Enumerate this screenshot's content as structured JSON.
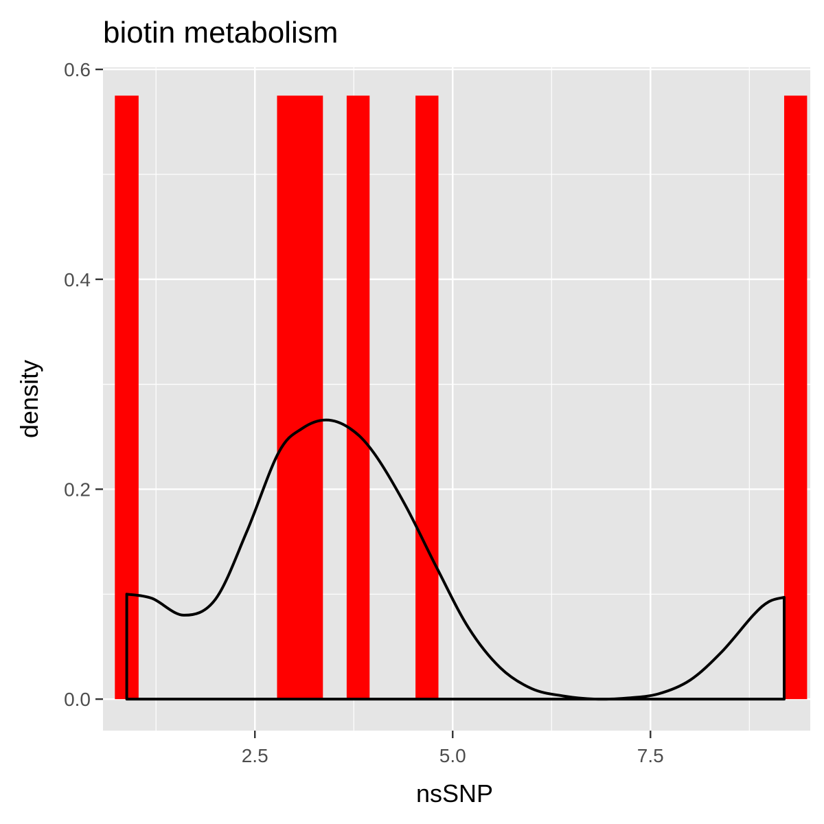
{
  "chart_data": {
    "type": "bar",
    "title": "biotin metabolism",
    "xlabel": "nsSNP",
    "ylabel": "density",
    "xlim": [
      0.58,
      9.52
    ],
    "ylim": [
      -0.03,
      0.602
    ],
    "x_ticks": [
      2.5,
      5.0,
      7.5
    ],
    "x_tick_labels": [
      "2.5",
      "5.0",
      "7.5"
    ],
    "y_ticks": [
      0.0,
      0.2,
      0.4,
      0.6
    ],
    "y_tick_labels": [
      "0.0",
      "0.2",
      "0.4",
      "0.6"
    ],
    "grid": true,
    "background": "#e5e5e5",
    "bar_color": "#ff0000",
    "line_color": "#000000",
    "histogram": [
      {
        "x0": 0.73,
        "x1": 1.03,
        "density": 0.575
      },
      {
        "x0": 2.78,
        "x1": 3.36,
        "density": 0.575
      },
      {
        "x0": 3.66,
        "x1": 3.95,
        "density": 0.575
      },
      {
        "x0": 4.53,
        "x1": 4.82,
        "density": 0.575
      },
      {
        "x0": 9.19,
        "x1": 9.48,
        "density": 0.575
      }
    ],
    "density_curve": {
      "x": [
        0.88,
        1.2,
        1.6,
        2.0,
        2.4,
        2.8,
        3.1,
        3.4,
        3.7,
        4.0,
        4.4,
        4.8,
        5.2,
        5.6,
        6.0,
        6.4,
        6.8,
        7.2,
        7.6,
        8.0,
        8.4,
        8.8,
        9.0,
        9.19
      ],
      "y": [
        0.1,
        0.096,
        0.08,
        0.095,
        0.16,
        0.235,
        0.258,
        0.266,
        0.258,
        0.235,
        0.185,
        0.125,
        0.068,
        0.03,
        0.01,
        0.003,
        0.0,
        0.001,
        0.005,
        0.018,
        0.045,
        0.08,
        0.093,
        0.097
      ]
    }
  }
}
